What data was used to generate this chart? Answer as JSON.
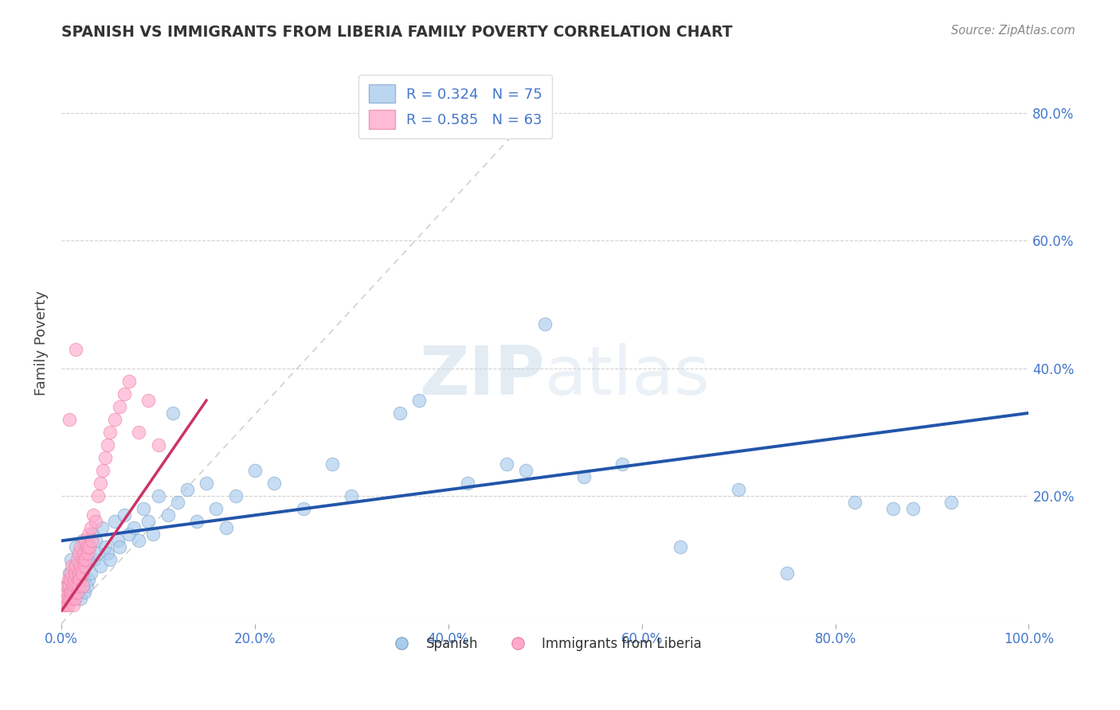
{
  "title": "SPANISH VS IMMIGRANTS FROM LIBERIA FAMILY POVERTY CORRELATION CHART",
  "source": "Source: ZipAtlas.com",
  "ylabel": "Family Poverty",
  "xlim": [
    0,
    1.0
  ],
  "ylim": [
    0,
    0.88
  ],
  "xtick_vals": [
    0.0,
    0.2,
    0.4,
    0.6,
    0.8,
    1.0
  ],
  "ytick_vals": [
    0.0,
    0.2,
    0.4,
    0.6,
    0.8
  ],
  "xtick_labels": [
    "0.0%",
    "20.0%",
    "40.0%",
    "60.0%",
    "80.0%",
    "100.0%"
  ],
  "ytick_labels_right": [
    "",
    "20.0%",
    "40.0%",
    "60.0%",
    "80.0%"
  ],
  "legend_blue_label": "R = 0.324   N = 75",
  "legend_pink_label": "R = 0.585   N = 63",
  "legend_series_blue": "Spanish",
  "legend_series_pink": "Immigrants from Liberia",
  "blue_R": 0.324,
  "blue_N": 75,
  "pink_R": 0.585,
  "pink_N": 63,
  "blue_color": "#AACCEE",
  "pink_color": "#FFAACC",
  "blue_edge_color": "#88AACC",
  "pink_edge_color": "#EE88AA",
  "trend_blue_color": "#2255AA",
  "trend_pink_color": "#CC3366",
  "ref_line_color": "#CCCCCC",
  "background_color": "#FFFFFF",
  "watermark_color": "#C8D8E8",
  "title_color": "#333333",
  "source_color": "#888888",
  "tick_color": "#4477CC",
  "ylabel_color": "#444444",
  "blue_trend_intercept": 0.13,
  "blue_trend_slope": 0.2,
  "pink_trend_intercept": 0.02,
  "pink_trend_slope": 2.2,
  "ref_line_x1": 0.0,
  "ref_line_y1": 0.0,
  "ref_line_x2": 0.5,
  "ref_line_y2": 0.82,
  "blue_scatter_x": [
    0.005,
    0.008,
    0.01,
    0.01,
    0.012,
    0.013,
    0.014,
    0.015,
    0.015,
    0.016,
    0.017,
    0.018,
    0.019,
    0.02,
    0.02,
    0.021,
    0.022,
    0.022,
    0.023,
    0.024,
    0.025,
    0.026,
    0.027,
    0.028,
    0.029,
    0.03,
    0.032,
    0.034,
    0.035,
    0.038,
    0.04,
    0.042,
    0.045,
    0.048,
    0.05,
    0.055,
    0.058,
    0.06,
    0.065,
    0.07,
    0.075,
    0.08,
    0.085,
    0.09,
    0.095,
    0.1,
    0.11,
    0.115,
    0.12,
    0.13,
    0.14,
    0.15,
    0.16,
    0.17,
    0.18,
    0.2,
    0.22,
    0.25,
    0.28,
    0.3,
    0.35,
    0.37,
    0.42,
    0.46,
    0.48,
    0.5,
    0.54,
    0.58,
    0.64,
    0.7,
    0.75,
    0.82,
    0.86,
    0.88,
    0.92
  ],
  "blue_scatter_y": [
    0.06,
    0.08,
    0.05,
    0.1,
    0.07,
    0.04,
    0.09,
    0.05,
    0.12,
    0.06,
    0.08,
    0.05,
    0.07,
    0.04,
    0.1,
    0.06,
    0.08,
    0.13,
    0.07,
    0.05,
    0.09,
    0.06,
    0.1,
    0.07,
    0.12,
    0.08,
    0.14,
    0.1,
    0.13,
    0.11,
    0.09,
    0.15,
    0.12,
    0.11,
    0.1,
    0.16,
    0.13,
    0.12,
    0.17,
    0.14,
    0.15,
    0.13,
    0.18,
    0.16,
    0.14,
    0.2,
    0.17,
    0.33,
    0.19,
    0.21,
    0.16,
    0.22,
    0.18,
    0.15,
    0.2,
    0.24,
    0.22,
    0.18,
    0.25,
    0.2,
    0.33,
    0.35,
    0.22,
    0.25,
    0.24,
    0.47,
    0.23,
    0.25,
    0.12,
    0.21,
    0.08,
    0.19,
    0.18,
    0.18,
    0.19
  ],
  "pink_scatter_x": [
    0.003,
    0.004,
    0.005,
    0.005,
    0.006,
    0.006,
    0.007,
    0.007,
    0.008,
    0.008,
    0.009,
    0.009,
    0.01,
    0.01,
    0.011,
    0.011,
    0.012,
    0.012,
    0.013,
    0.013,
    0.014,
    0.014,
    0.015,
    0.015,
    0.016,
    0.016,
    0.017,
    0.017,
    0.018,
    0.018,
    0.019,
    0.02,
    0.02,
    0.021,
    0.022,
    0.022,
    0.023,
    0.024,
    0.025,
    0.025,
    0.026,
    0.027,
    0.028,
    0.029,
    0.03,
    0.031,
    0.033,
    0.035,
    0.038,
    0.04,
    0.043,
    0.045,
    0.048,
    0.05,
    0.055,
    0.06,
    0.065,
    0.07,
    0.08,
    0.09,
    0.1,
    0.015,
    0.008
  ],
  "pink_scatter_y": [
    0.03,
    0.04,
    0.03,
    0.05,
    0.04,
    0.06,
    0.03,
    0.07,
    0.04,
    0.06,
    0.05,
    0.07,
    0.04,
    0.08,
    0.05,
    0.09,
    0.06,
    0.03,
    0.07,
    0.05,
    0.08,
    0.04,
    0.06,
    0.09,
    0.05,
    0.1,
    0.07,
    0.06,
    0.11,
    0.08,
    0.07,
    0.09,
    0.12,
    0.08,
    0.1,
    0.06,
    0.11,
    0.09,
    0.13,
    0.1,
    0.12,
    0.11,
    0.14,
    0.12,
    0.15,
    0.13,
    0.17,
    0.16,
    0.2,
    0.22,
    0.24,
    0.26,
    0.28,
    0.3,
    0.32,
    0.34,
    0.36,
    0.38,
    0.3,
    0.35,
    0.28,
    0.43,
    0.32
  ]
}
